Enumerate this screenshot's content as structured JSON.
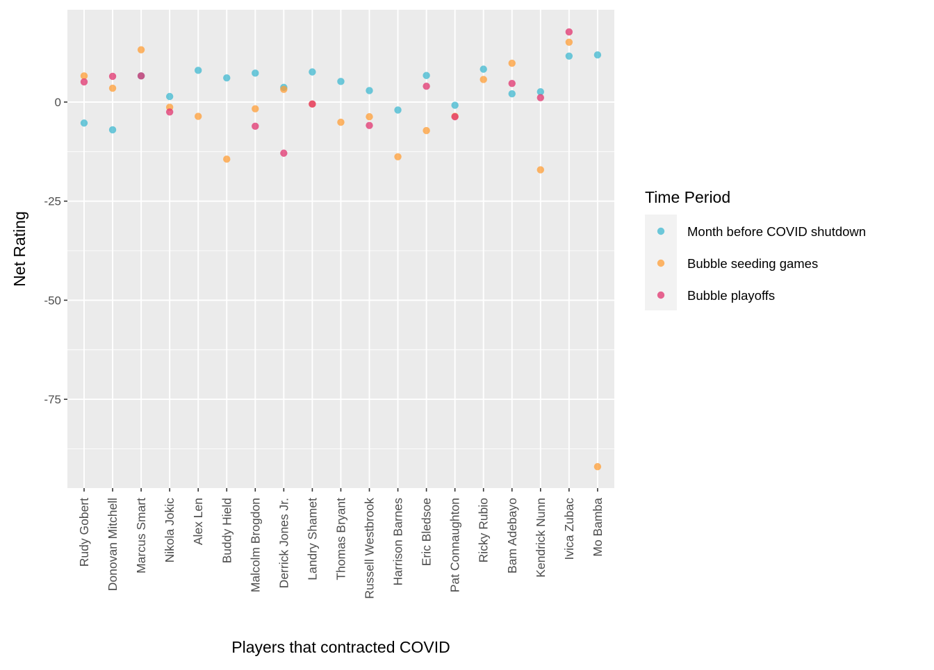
{
  "chart_data": {
    "type": "scatter",
    "title": "",
    "xlabel": "Players that contracted COVID",
    "ylabel": "Net Rating",
    "categories": [
      "Rudy Gobert",
      "Donovan Mitchell",
      "Marcus Smart",
      "Nikola Jokic",
      "Alex Len",
      "Buddy Hield",
      "Malcolm Brogdon",
      "Derrick Jones Jr.",
      "Landry Shamet",
      "Thomas Bryant",
      "Russell Westbrook",
      "Harrison Barnes",
      "Eric Bledsoe",
      "Pat Connaughton",
      "Ricky Rubio",
      "Bam Adebayo",
      "Kendrick Nunn",
      "Ivica Zubac",
      "Mo Bamba"
    ],
    "yticks": [
      0,
      -25,
      -50,
      -75
    ],
    "ylim": [
      -97.5,
      23.0
    ],
    "grid": true,
    "legend": {
      "title": "Time Period",
      "position": "right"
    },
    "series": [
      {
        "name": "Month before COVID shutdown",
        "color": "#3FB8D0",
        "values": [
          -5.3,
          -7.0,
          6.6,
          1.4,
          8.0,
          6.1,
          7.3,
          3.7,
          7.6,
          5.2,
          2.9,
          -2.0,
          6.7,
          -0.8,
          8.3,
          2.1,
          2.6,
          11.6,
          11.9
        ]
      },
      {
        "name": "Bubble seeding games",
        "color": "#FF9E35",
        "values": [
          6.6,
          3.5,
          13.2,
          -1.3,
          -3.6,
          -14.4,
          -1.7,
          3.2,
          -0.5,
          -5.1,
          -3.7,
          -13.8,
          -7.2,
          -3.6,
          5.7,
          9.8,
          -17.1,
          15.1,
          -92.0
        ]
      },
      {
        "name": "Bubble playoffs",
        "color": "#E0336E",
        "values": [
          5.1,
          6.5,
          6.6,
          -2.5,
          null,
          null,
          -6.1,
          -12.9,
          -0.5,
          null,
          -5.9,
          null,
          4.0,
          -3.7,
          null,
          4.7,
          1.1,
          17.7,
          null
        ]
      }
    ]
  }
}
